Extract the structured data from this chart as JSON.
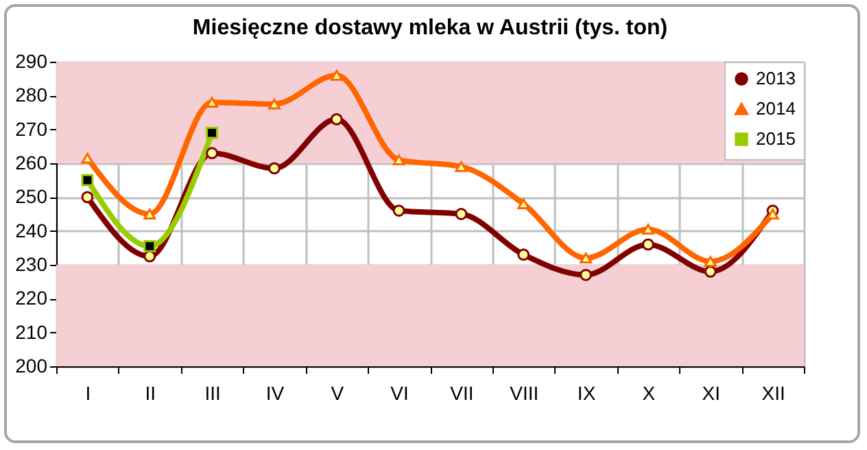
{
  "chart_data": {
    "type": "line",
    "title": "Miesięczne dostawy mleka w Austrii (tys. ton)",
    "categories": [
      "I",
      "II",
      "III",
      "IV",
      "V",
      "VI",
      "VII",
      "VIII",
      "IX",
      "X",
      "XI",
      "XII"
    ],
    "series": [
      {
        "name": "2013",
        "color": "#800000",
        "marker": "circle",
        "values": [
          250,
          232.5,
          263,
          258.5,
          273,
          246,
          245,
          233,
          227,
          236,
          228,
          246
        ]
      },
      {
        "name": "2014",
        "color": "#ff6600",
        "marker": "triangle",
        "values": [
          261.5,
          245,
          278,
          277.5,
          286,
          261,
          259,
          248,
          232,
          240.5,
          231,
          245
        ]
      },
      {
        "name": "2015",
        "color": "#99cc00",
        "marker": "square",
        "values": [
          255,
          235.5,
          269,
          null,
          null,
          null,
          null,
          null,
          null,
          null,
          null,
          null
        ]
      }
    ],
    "ylim": [
      200,
      290
    ],
    "yticks": [
      200,
      210,
      220,
      230,
      240,
      250,
      260,
      270,
      280,
      290
    ],
    "bands": [
      {
        "axis": "y",
        "from": 200,
        "to": 230,
        "color": "#f6cfd5"
      },
      {
        "axis": "y",
        "from": 260,
        "to": 290,
        "color": "#f6cfd5"
      }
    ],
    "grid": true,
    "legend": "top right",
    "line_style": "solid"
  }
}
